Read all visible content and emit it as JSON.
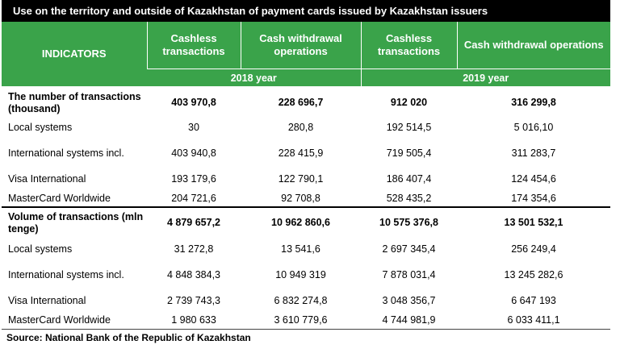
{
  "title": "Use on the territory and outside of Kazakhstan of payment cards issued by Kazakhstan issuers",
  "header": {
    "indicators": "INDICATORS",
    "columns": [
      "Cashless transactions",
      "Cash withdrawal operations",
      "Cashless transactions",
      "Cash withdrawal operations"
    ],
    "years": [
      "2018 year",
      "2019 year"
    ]
  },
  "rows": [
    {
      "label": "The number of transactions (thousand)",
      "values": [
        "403 970,8",
        "228 696,7",
        "912 020",
        "316 299,8"
      ]
    },
    {
      "label": "Local systems",
      "values": [
        "30",
        "280,8",
        "192 514,5",
        "5 016,10"
      ]
    },
    {
      "label": "International systems incl.",
      "values": [
        "403 940,8",
        "228 415,9",
        "719 505,4",
        "311 283,7"
      ]
    },
    {
      "label": "Visa International",
      "values": [
        "193 179,6",
        "122 790,1",
        "186 407,4",
        "124 454,6"
      ]
    },
    {
      "label": "MasterCard Worldwide",
      "values": [
        "204 721,6",
        "92 708,8",
        "528 435,2",
        "174 354,6"
      ]
    },
    {
      "label": "Volume of transactions (mln tenge)",
      "values": [
        "4 879 657,2",
        "10 962 860,6",
        "10 575 376,8",
        "13 501 532,1"
      ]
    },
    {
      "label": "Local systems",
      "values": [
        "31 272,8",
        "13 541,6",
        "2 697 345,4",
        "256 249,4"
      ]
    },
    {
      "label": "International systems incl.",
      "values": [
        "4 848 384,3",
        "10 949 319",
        "7 878 031,4",
        "13 245 282,6"
      ]
    },
    {
      "label": "Visa International",
      "values": [
        "2 739 743,3",
        "6 832 274,8",
        "3 048 356,7",
        "6 647 193"
      ]
    },
    {
      "label": "MasterCard Worldwide",
      "values": [
        "1 980 633",
        "3 610 779,6",
        "4 744 981,9",
        "6 033 411,1"
      ]
    }
  ],
  "source": "Source: National Bank of the Republic of Kazakhstan",
  "colors": {
    "header_green": "#3aa34a",
    "title_bar": "#000000"
  }
}
